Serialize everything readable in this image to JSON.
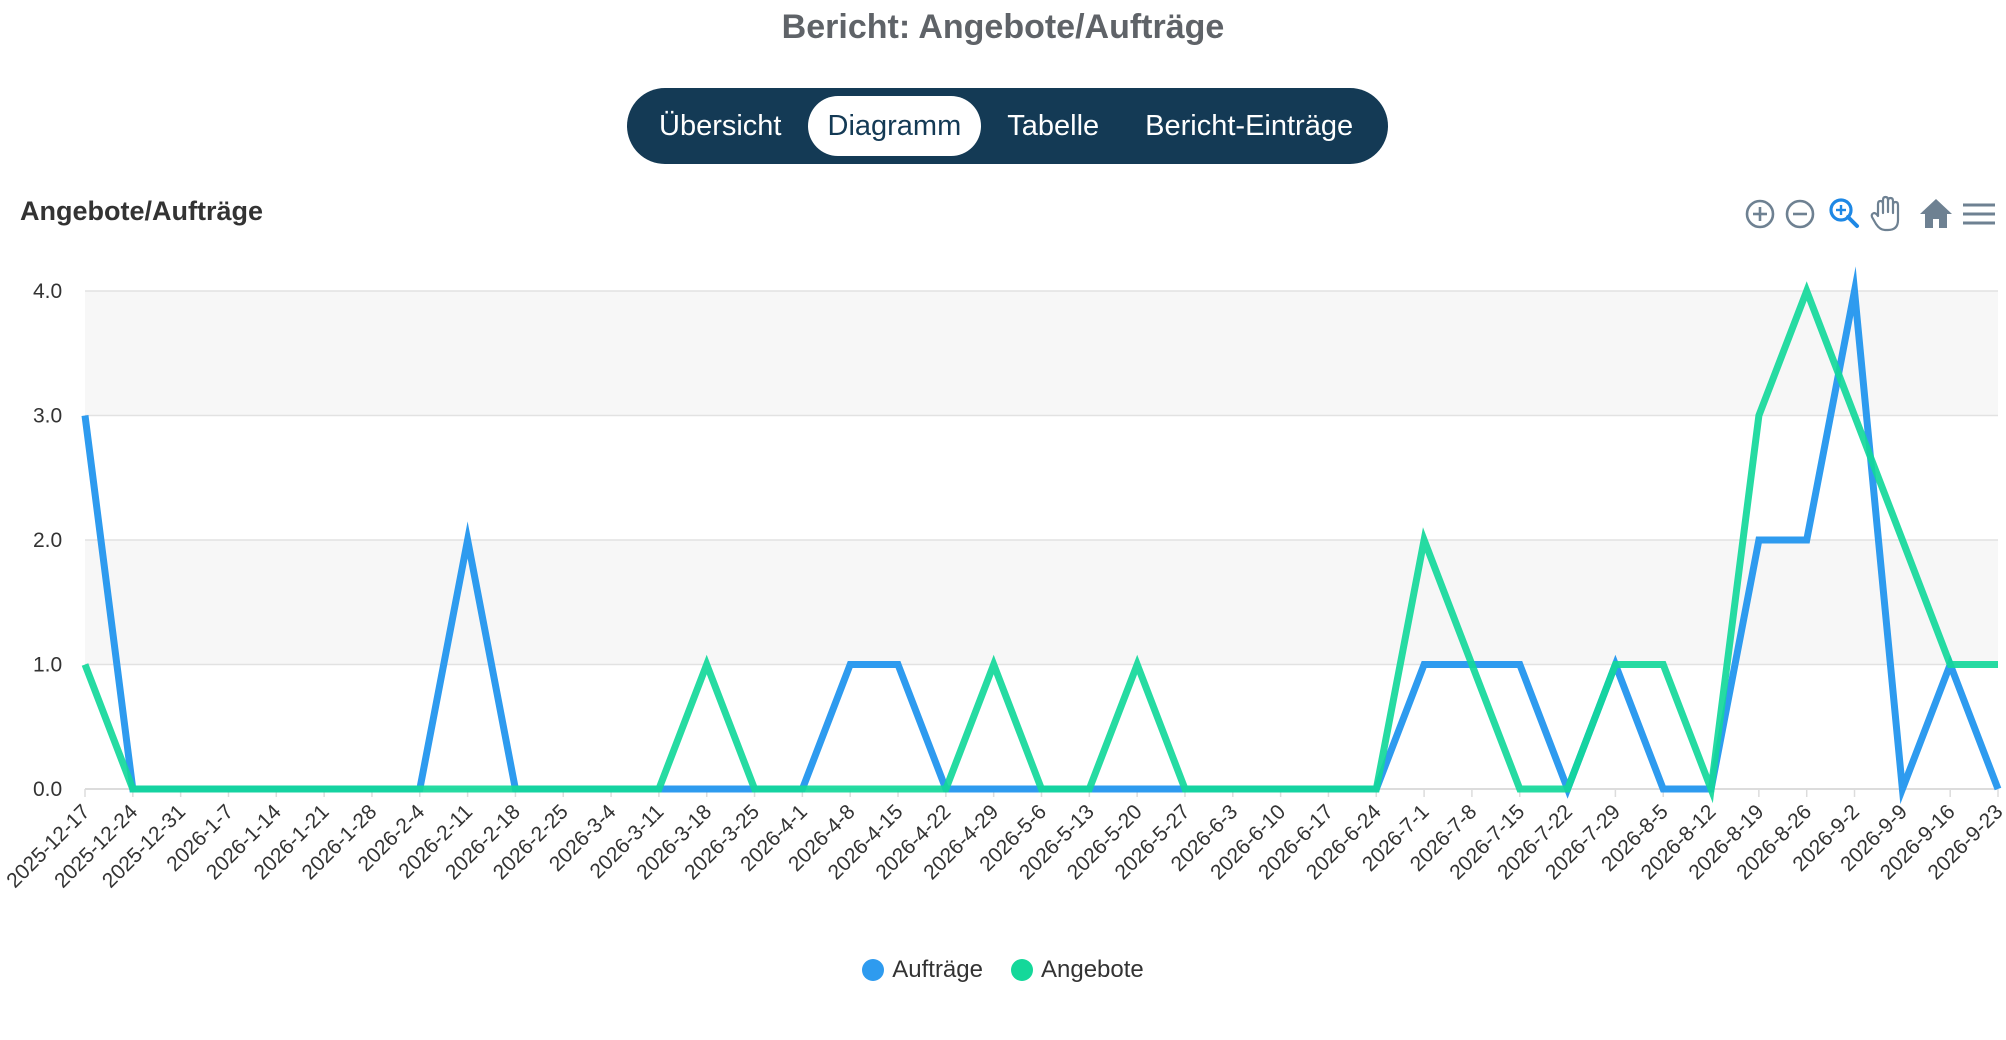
{
  "page": {
    "title": "Bericht: Angebote/Aufträge"
  },
  "tabs": [
    {
      "label": "Übersicht",
      "active": false
    },
    {
      "label": "Diagramm",
      "active": true
    },
    {
      "label": "Tabelle",
      "active": false
    },
    {
      "label": "Bericht-Einträge",
      "active": false
    }
  ],
  "toolbar": {
    "icons": [
      "zoom-in-icon",
      "zoom-out-icon",
      "selection-zoom-icon",
      "pan-hand-icon",
      "reset-home-icon",
      "menu-icon"
    ],
    "active_icon_color": "#1e88e5",
    "icon_color": "#6e8192"
  },
  "colors": {
    "tab_bar": "#143a55",
    "auftraege": "#2e9bef",
    "angebote": "#14d89a"
  },
  "chart_data": {
    "type": "line",
    "title": "Angebote/Aufträge",
    "xlabel": "",
    "ylabel": "",
    "ylim": [
      0,
      4
    ],
    "yticks": [
      "0.0",
      "1.0",
      "2.0",
      "3.0",
      "4.0"
    ],
    "grid": true,
    "legend_position": "bottom",
    "categories": [
      "2025-12-17",
      "2025-12-24",
      "2025-12-31",
      "2026-1-7",
      "2026-1-14",
      "2026-1-21",
      "2026-1-28",
      "2026-2-4",
      "2026-2-11",
      "2026-2-18",
      "2026-2-25",
      "2026-3-4",
      "2026-3-11",
      "2026-3-18",
      "2026-3-25",
      "2026-4-1",
      "2026-4-8",
      "2026-4-15",
      "2026-4-22",
      "2026-4-29",
      "2026-5-6",
      "2026-5-13",
      "2026-5-20",
      "2026-5-27",
      "2026-6-3",
      "2026-6-10",
      "2026-6-17",
      "2026-6-24",
      "2026-7-1",
      "2026-7-8",
      "2026-7-15",
      "2026-7-22",
      "2026-7-29",
      "2026-8-5",
      "2026-8-12",
      "2026-8-19",
      "2026-8-26",
      "2026-9-2",
      "2026-9-9",
      "2026-9-16",
      "2026-9-23"
    ],
    "series": [
      {
        "name": "Aufträge",
        "color": "#2e9bef",
        "values": [
          3,
          0,
          0,
          0,
          0,
          0,
          0,
          0,
          2,
          0,
          0,
          0,
          0,
          0,
          0,
          0,
          1,
          1,
          0,
          0,
          0,
          0,
          0,
          0,
          0,
          0,
          0,
          0,
          1,
          1,
          1,
          0,
          1,
          0,
          0,
          2,
          2,
          4,
          0,
          1,
          0
        ]
      },
      {
        "name": "Angebote",
        "color": "#14d89a",
        "values": [
          1,
          0,
          0,
          0,
          0,
          0,
          0,
          0,
          0,
          0,
          0,
          0,
          0,
          1,
          0,
          0,
          0,
          0,
          0,
          1,
          0,
          0,
          1,
          0,
          0,
          0,
          0,
          0,
          2,
          1,
          0,
          0,
          1,
          1,
          0,
          3,
          4,
          3,
          2,
          1,
          1
        ]
      }
    ]
  }
}
